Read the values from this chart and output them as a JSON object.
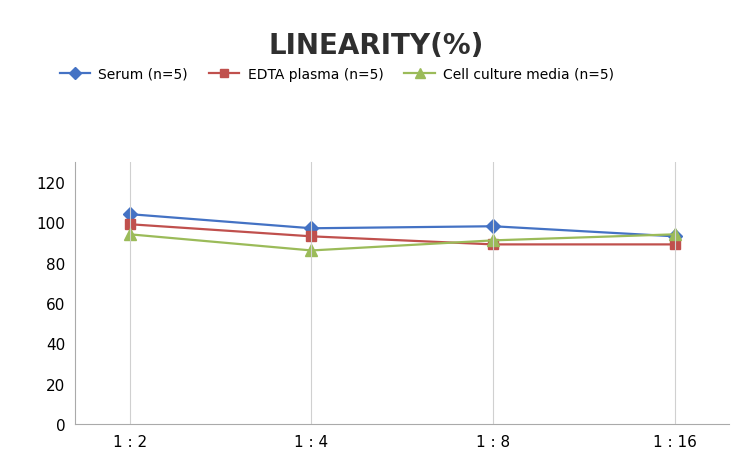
{
  "title": "LINEARITY(%)",
  "title_fontsize": 20,
  "title_fontweight": "bold",
  "x_labels": [
    "1 : 2",
    "1 : 4",
    "1 : 8",
    "1 : 16"
  ],
  "x_positions": [
    0,
    1,
    2,
    3
  ],
  "series": [
    {
      "label": "Serum (n=5)",
      "values": [
        104,
        97,
        98,
        93
      ],
      "color": "#4472C4",
      "marker": "D",
      "markersize": 7,
      "linewidth": 1.6
    },
    {
      "label": "EDTA plasma (n=5)",
      "values": [
        99,
        93,
        89,
        89
      ],
      "color": "#C0504D",
      "marker": "s",
      "markersize": 7,
      "linewidth": 1.6
    },
    {
      "label": "Cell culture media (n=5)",
      "values": [
        94,
        86,
        91,
        94
      ],
      "color": "#9BBB59",
      "marker": "^",
      "markersize": 8,
      "linewidth": 1.6
    }
  ],
  "ylim": [
    0,
    130
  ],
  "yticks": [
    0,
    20,
    40,
    60,
    80,
    100,
    120
  ],
  "grid_color": "#D0D0D0",
  "background_color": "#FFFFFF",
  "legend_fontsize": 10,
  "axis_fontsize": 11,
  "tick_fontsize": 11
}
